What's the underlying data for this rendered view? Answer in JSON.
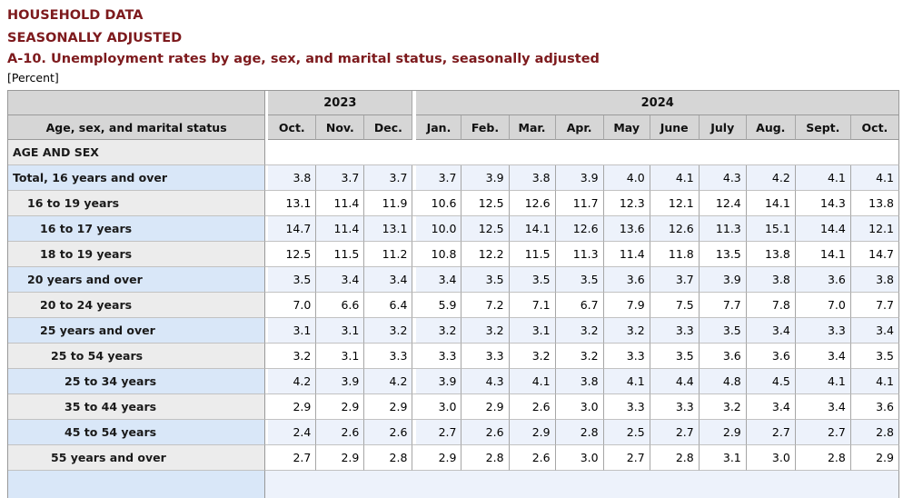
{
  "page": {
    "heading1": "HOUSEHOLD DATA",
    "heading2": "SEASONALLY ADJUSTED",
    "table_title": "A-10. Unemployment rates by age, sex, and marital status, seasonally adjusted",
    "unit_note": "[Percent]"
  },
  "colors": {
    "title_maroon": "#7d1a1d",
    "header_bg": "#d6d6d6",
    "section_label_bg": "#ebebeb",
    "highlight_row_label_bg": "#d9e7f8",
    "highlight_row_data_bg": "#edf2fb",
    "alt_row_label_bg": "#ececec"
  },
  "table": {
    "stub_header": "Age, sex, and marital status",
    "year_groups": [
      {
        "label": "2023",
        "span": 3
      },
      {
        "label": "2024",
        "span": 10
      }
    ],
    "months": [
      "Oct.",
      "Nov.",
      "Dec.",
      "Jan.",
      "Feb.",
      "Mar.",
      "Apr.",
      "May",
      "June",
      "July",
      "Aug.",
      "Sept.",
      "Oct."
    ],
    "section_header": "AGE AND SEX",
    "rows": [
      {
        "label": "Total, 16 years and over",
        "indent": 0,
        "values": [
          "3.8",
          "3.7",
          "3.7",
          "3.7",
          "3.9",
          "3.8",
          "3.9",
          "4.0",
          "4.1",
          "4.3",
          "4.2",
          "4.1",
          "4.1"
        ]
      },
      {
        "label": "16 to 19 years",
        "indent": 1,
        "values": [
          "13.1",
          "11.4",
          "11.9",
          "10.6",
          "12.5",
          "12.6",
          "11.7",
          "12.3",
          "12.1",
          "12.4",
          "14.1",
          "14.3",
          "13.8"
        ]
      },
      {
        "label": "16 to 17 years",
        "indent": 2,
        "values": [
          "14.7",
          "11.4",
          "13.1",
          "10.0",
          "12.5",
          "14.1",
          "12.6",
          "13.6",
          "12.6",
          "11.3",
          "15.1",
          "14.4",
          "12.1"
        ]
      },
      {
        "label": "18 to 19 years",
        "indent": 2,
        "values": [
          "12.5",
          "11.5",
          "11.2",
          "10.8",
          "12.2",
          "11.5",
          "11.3",
          "11.4",
          "11.8",
          "13.5",
          "13.8",
          "14.1",
          "14.7"
        ]
      },
      {
        "label": "20 years and over",
        "indent": 1,
        "values": [
          "3.5",
          "3.4",
          "3.4",
          "3.4",
          "3.5",
          "3.5",
          "3.5",
          "3.6",
          "3.7",
          "3.9",
          "3.8",
          "3.6",
          "3.8"
        ]
      },
      {
        "label": "20 to 24 years",
        "indent": 2,
        "values": [
          "7.0",
          "6.6",
          "6.4",
          "5.9",
          "7.2",
          "7.1",
          "6.7",
          "7.9",
          "7.5",
          "7.7",
          "7.8",
          "7.0",
          "7.7"
        ]
      },
      {
        "label": "25 years and over",
        "indent": 2,
        "values": [
          "3.1",
          "3.1",
          "3.2",
          "3.2",
          "3.2",
          "3.1",
          "3.2",
          "3.2",
          "3.3",
          "3.5",
          "3.4",
          "3.3",
          "3.4"
        ]
      },
      {
        "label": "25 to 54 years",
        "indent": 3,
        "values": [
          "3.2",
          "3.1",
          "3.3",
          "3.3",
          "3.3",
          "3.2",
          "3.2",
          "3.3",
          "3.5",
          "3.6",
          "3.6",
          "3.4",
          "3.5"
        ]
      },
      {
        "label": "25 to 34 years",
        "indent": 4,
        "values": [
          "4.2",
          "3.9",
          "4.2",
          "3.9",
          "4.3",
          "4.1",
          "3.8",
          "4.1",
          "4.4",
          "4.8",
          "4.5",
          "4.1",
          "4.1"
        ]
      },
      {
        "label": "35 to 44 years",
        "indent": 4,
        "values": [
          "2.9",
          "2.9",
          "2.9",
          "3.0",
          "2.9",
          "2.6",
          "3.0",
          "3.3",
          "3.3",
          "3.2",
          "3.4",
          "3.4",
          "3.6"
        ]
      },
      {
        "label": "45 to 54 years",
        "indent": 4,
        "values": [
          "2.4",
          "2.6",
          "2.6",
          "2.7",
          "2.6",
          "2.9",
          "2.8",
          "2.5",
          "2.7",
          "2.9",
          "2.7",
          "2.7",
          "2.8"
        ]
      },
      {
        "label": "55 years and over",
        "indent": 3,
        "values": [
          "2.7",
          "2.9",
          "2.8",
          "2.9",
          "2.8",
          "2.6",
          "3.0",
          "2.7",
          "2.8",
          "3.1",
          "3.0",
          "2.8",
          "2.9"
        ]
      }
    ]
  }
}
